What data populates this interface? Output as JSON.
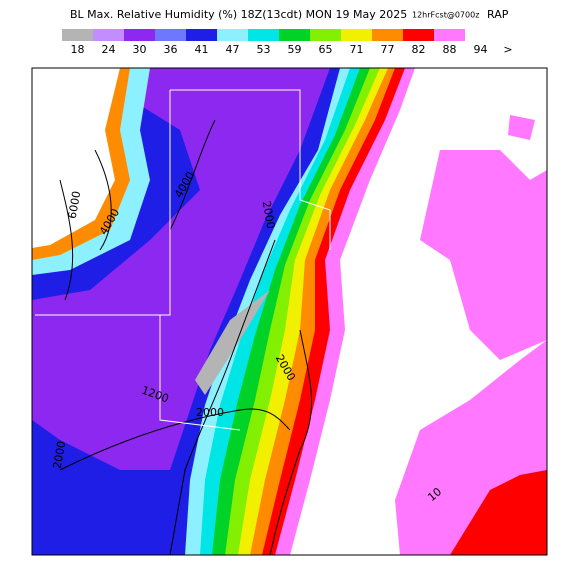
{
  "header": {
    "title": "BL Max. Relative Humidity (%) 18Z(13cdt) MON 19 May 2025",
    "forecast": "12hrFcst@0700z",
    "model": "RAP"
  },
  "legend": {
    "labels": [
      "18",
      "24",
      "30",
      "36",
      "41",
      "47",
      "53",
      "59",
      "65",
      "71",
      "77",
      "82",
      "88",
      "94"
    ],
    "more": ">",
    "colors": [
      "#b4b4b4",
      "#c38cff",
      "#8c28f0",
      "#6e78ff",
      "#1e1ee6",
      "#8cf0ff",
      "#00e6e6",
      "#00d228",
      "#82f000",
      "#f0f000",
      "#ff8c00",
      "#ff0000",
      "#ff78ff",
      "#ffffff"
    ]
  },
  "contour_labels": [
    "6000",
    "4000",
    "4000",
    "2000",
    "2000",
    "1200",
    "2000",
    "2000",
    "10"
  ]
}
